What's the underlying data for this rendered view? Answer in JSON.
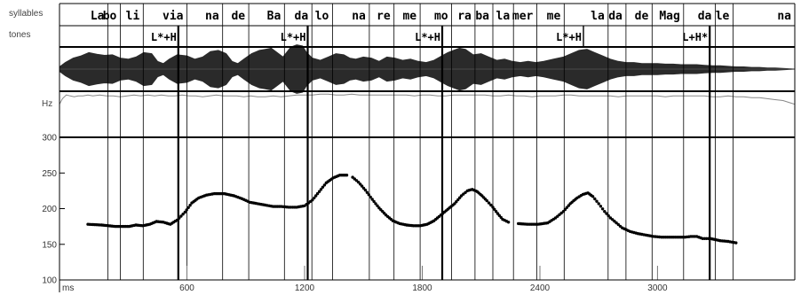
{
  "tiers": {
    "syllables_label": "syllables",
    "tones_label": "tones",
    "syllables": [
      {
        "text": "La",
        "start": 95,
        "end": 197
      },
      {
        "text": "bo",
        "start": 197,
        "end": 260
      },
      {
        "text": "li",
        "start": 260,
        "end": 377
      },
      {
        "text": "via",
        "start": 377,
        "end": 600
      },
      {
        "text": "na",
        "start": 600,
        "end": 782
      },
      {
        "text": "de",
        "start": 782,
        "end": 915
      },
      {
        "text": "Ba",
        "start": 915,
        "end": 1097
      },
      {
        "text": "da",
        "start": 1097,
        "end": 1237
      },
      {
        "text": "lo",
        "start": 1237,
        "end": 1342
      },
      {
        "text": "na",
        "start": 1342,
        "end": 1530
      },
      {
        "text": "re",
        "start": 1530,
        "end": 1656
      },
      {
        "text": "me",
        "start": 1656,
        "end": 1789
      },
      {
        "text": "mo",
        "start": 1789,
        "end": 1950
      },
      {
        "text": "ra",
        "start": 1950,
        "end": 2069
      },
      {
        "text": "ba",
        "start": 2069,
        "end": 2160
      },
      {
        "text": "la",
        "start": 2160,
        "end": 2265
      },
      {
        "text": "mer",
        "start": 2265,
        "end": 2384
      },
      {
        "text": "me",
        "start": 2384,
        "end": 2524
      },
      {
        "text": "la",
        "start": 2524,
        "end": 2748
      },
      {
        "text": "da",
        "start": 2748,
        "end": 2839
      },
      {
        "text": "de",
        "start": 2839,
        "end": 2972
      },
      {
        "text": "Mag",
        "start": 2972,
        "end": 3133
      },
      {
        "text": "da",
        "start": 3133,
        "end": 3294
      },
      {
        "text": "le",
        "start": 3294,
        "end": 3385
      },
      {
        "text": "na",
        "start": 3385,
        "end": 3700
      }
    ],
    "tones": [
      {
        "label": "L*+H",
        "time": 556
      },
      {
        "label": "L*+H",
        "time": 1216
      },
      {
        "label": "L*+H",
        "time": 1902
      },
      {
        "label": "L*+H",
        "time": 2622
      },
      {
        "label": "L+H*",
        "time": 3266
      }
    ],
    "boundary_lines": [
      556,
      1216,
      1902,
      3266
    ]
  },
  "chart_data": {
    "type": "line",
    "ylabel": "Hz",
    "xlabel": "ms",
    "xlim": [
      -50,
      3700
    ],
    "ylim": [
      100,
      300
    ],
    "yticks": [
      100,
      150,
      200,
      250,
      300
    ],
    "xticks": [
      600,
      1200,
      1800,
      2400,
      3000
    ],
    "f0_segments": [
      [
        [
          95,
          178
        ],
        [
          165,
          177
        ],
        [
          235,
          175
        ],
        [
          305,
          175
        ],
        [
          340,
          177
        ],
        [
          375,
          176
        ],
        [
          410,
          178
        ],
        [
          445,
          182
        ],
        [
          480,
          181
        ],
        [
          515,
          178
        ],
        [
          550,
          184
        ],
        [
          590,
          195
        ],
        [
          625,
          208
        ],
        [
          660,
          215
        ],
        [
          700,
          219
        ],
        [
          740,
          221
        ],
        [
          790,
          221
        ],
        [
          840,
          218
        ],
        [
          880,
          214
        ],
        [
          920,
          209
        ],
        [
          960,
          207
        ],
        [
          1000,
          205
        ],
        [
          1040,
          203
        ],
        [
          1080,
          203
        ],
        [
          1120,
          202
        ],
        [
          1160,
          202
        ],
        [
          1200,
          204
        ],
        [
          1240,
          212
        ],
        [
          1275,
          224
        ],
        [
          1310,
          236
        ],
        [
          1345,
          243
        ],
        [
          1380,
          247
        ],
        [
          1415,
          247
        ]
      ],
      [
        [
          1445,
          244
        ],
        [
          1475,
          237
        ],
        [
          1510,
          226
        ],
        [
          1545,
          213
        ],
        [
          1580,
          201
        ],
        [
          1615,
          191
        ],
        [
          1650,
          183
        ],
        [
          1685,
          179
        ],
        [
          1720,
          177
        ],
        [
          1755,
          176
        ],
        [
          1790,
          176
        ],
        [
          1825,
          178
        ],
        [
          1860,
          183
        ],
        [
          1895,
          191
        ],
        [
          1930,
          199
        ],
        [
          1965,
          207
        ],
        [
          2000,
          218
        ],
        [
          2030,
          225
        ],
        [
          2055,
          227
        ],
        [
          2080,
          224
        ],
        [
          2105,
          218
        ],
        [
          2130,
          211
        ],
        [
          2160,
          202
        ],
        [
          2185,
          193
        ],
        [
          2210,
          185
        ],
        [
          2240,
          181
        ]
      ],
      [
        [
          2290,
          179
        ],
        [
          2340,
          178
        ],
        [
          2390,
          178
        ],
        [
          2440,
          180
        ],
        [
          2480,
          187
        ],
        [
          2520,
          196
        ],
        [
          2555,
          207
        ],
        [
          2590,
          215
        ],
        [
          2620,
          220
        ],
        [
          2645,
          222
        ],
        [
          2670,
          217
        ],
        [
          2700,
          207
        ],
        [
          2730,
          196
        ],
        [
          2760,
          187
        ],
        [
          2790,
          180
        ],
        [
          2820,
          173
        ],
        [
          2860,
          168
        ],
        [
          2900,
          165
        ],
        [
          2940,
          163
        ],
        [
          2980,
          161
        ],
        [
          3020,
          160
        ],
        [
          3060,
          160
        ],
        [
          3100,
          160
        ],
        [
          3140,
          160
        ],
        [
          3170,
          161
        ],
        [
          3200,
          161
        ],
        [
          3230,
          158
        ],
        [
          3270,
          158
        ],
        [
          3320,
          155
        ],
        [
          3360,
          154
        ],
        [
          3400,
          152
        ]
      ]
    ],
    "intensity": [
      [
        -50,
        86
      ],
      [
        -35,
        92
      ],
      [
        -15,
        96
      ],
      [
        5,
        95
      ],
      [
        25,
        94
      ],
      [
        45,
        95
      ],
      [
        70,
        95
      ],
      [
        95,
        96
      ],
      [
        120,
        95
      ],
      [
        155,
        96
      ],
      [
        190,
        95
      ],
      [
        225,
        95
      ],
      [
        260,
        94
      ],
      [
        295,
        95
      ],
      [
        330,
        96
      ],
      [
        365,
        95
      ],
      [
        400,
        96
      ],
      [
        435,
        95
      ],
      [
        470,
        96
      ],
      [
        505,
        95
      ],
      [
        540,
        95
      ],
      [
        575,
        96
      ],
      [
        610,
        95
      ],
      [
        645,
        95
      ],
      [
        680,
        94
      ],
      [
        715,
        95
      ],
      [
        750,
        96
      ],
      [
        785,
        95
      ],
      [
        820,
        95
      ],
      [
        855,
        95
      ],
      [
        890,
        94
      ],
      [
        925,
        95
      ],
      [
        960,
        94
      ],
      [
        1000,
        94
      ],
      [
        1040,
        95
      ],
      [
        1080,
        94
      ],
      [
        1120,
        95
      ],
      [
        1160,
        96
      ],
      [
        1200,
        96
      ],
      [
        1240,
        96
      ],
      [
        1280,
        97
      ],
      [
        1320,
        97
      ],
      [
        1360,
        96
      ],
      [
        1400,
        96
      ],
      [
        1440,
        97
      ],
      [
        1480,
        96
      ],
      [
        1520,
        96
      ],
      [
        1560,
        96
      ],
      [
        1600,
        96
      ],
      [
        1640,
        96
      ],
      [
        1680,
        96
      ],
      [
        1720,
        96
      ],
      [
        1760,
        95
      ],
      [
        1800,
        96
      ],
      [
        1840,
        96
      ],
      [
        1880,
        95
      ],
      [
        1920,
        95
      ],
      [
        1960,
        96
      ],
      [
        2000,
        96
      ],
      [
        2040,
        96
      ],
      [
        2080,
        96
      ],
      [
        2120,
        96
      ],
      [
        2160,
        95
      ],
      [
        2200,
        95
      ],
      [
        2240,
        96
      ],
      [
        2280,
        95
      ],
      [
        2320,
        95
      ],
      [
        2360,
        94
      ],
      [
        2400,
        95
      ],
      [
        2440,
        95
      ],
      [
        2480,
        95
      ],
      [
        2520,
        96
      ],
      [
        2560,
        96
      ],
      [
        2600,
        95
      ],
      [
        2640,
        95
      ],
      [
        2680,
        95
      ],
      [
        2720,
        95
      ],
      [
        2760,
        95
      ],
      [
        2800,
        94
      ],
      [
        2840,
        95
      ],
      [
        2880,
        95
      ],
      [
        2920,
        95
      ],
      [
        2960,
        95
      ],
      [
        3000,
        95
      ],
      [
        3040,
        94
      ],
      [
        3080,
        95
      ],
      [
        3120,
        95
      ],
      [
        3160,
        95
      ],
      [
        3200,
        95
      ],
      [
        3240,
        95
      ],
      [
        3280,
        94
      ],
      [
        3320,
        94
      ],
      [
        3360,
        95
      ],
      [
        3400,
        94
      ],
      [
        3440,
        94
      ],
      [
        3480,
        93
      ],
      [
        3520,
        93
      ],
      [
        3560,
        92
      ],
      [
        3600,
        91
      ],
      [
        3640,
        90
      ],
      [
        3670,
        88
      ],
      [
        3700,
        86
      ]
    ],
    "waveform_envelope": [
      [
        -50,
        4
      ],
      [
        -20,
        12
      ],
      [
        20,
        20
      ],
      [
        60,
        24
      ],
      [
        100,
        30
      ],
      [
        140,
        27
      ],
      [
        180,
        25
      ],
      [
        220,
        26
      ],
      [
        260,
        20
      ],
      [
        300,
        18
      ],
      [
        340,
        22
      ],
      [
        380,
        30
      ],
      [
        420,
        28
      ],
      [
        450,
        14
      ],
      [
        480,
        10
      ],
      [
        510,
        18
      ],
      [
        550,
        26
      ],
      [
        600,
        24
      ],
      [
        640,
        18
      ],
      [
        680,
        22
      ],
      [
        720,
        32
      ],
      [
        760,
        34
      ],
      [
        800,
        28
      ],
      [
        830,
        14
      ],
      [
        860,
        10
      ],
      [
        890,
        18
      ],
      [
        930,
        28
      ],
      [
        970,
        34
      ],
      [
        1000,
        36
      ],
      [
        1030,
        38
      ],
      [
        1060,
        30
      ],
      [
        1090,
        22
      ],
      [
        1130,
        40
      ],
      [
        1160,
        44
      ],
      [
        1190,
        42
      ],
      [
        1210,
        30
      ],
      [
        1240,
        20
      ],
      [
        1280,
        16
      ],
      [
        1320,
        22
      ],
      [
        1360,
        28
      ],
      [
        1400,
        26
      ],
      [
        1430,
        20
      ],
      [
        1460,
        18
      ],
      [
        1500,
        22
      ],
      [
        1540,
        20
      ],
      [
        1580,
        14
      ],
      [
        1620,
        22
      ],
      [
        1660,
        20
      ],
      [
        1700,
        16
      ],
      [
        1740,
        18
      ],
      [
        1780,
        14
      ],
      [
        1820,
        12
      ],
      [
        1860,
        16
      ],
      [
        1900,
        24
      ],
      [
        1930,
        30
      ],
      [
        1960,
        34
      ],
      [
        1990,
        38
      ],
      [
        2020,
        36
      ],
      [
        2060,
        26
      ],
      [
        2100,
        28
      ],
      [
        2140,
        22
      ],
      [
        2180,
        16
      ],
      [
        2220,
        18
      ],
      [
        2260,
        14
      ],
      [
        2300,
        12
      ],
      [
        2340,
        14
      ],
      [
        2380,
        12
      ],
      [
        2420,
        14
      ],
      [
        2470,
        18
      ],
      [
        2520,
        22
      ],
      [
        2560,
        28
      ],
      [
        2600,
        34
      ],
      [
        2640,
        36
      ],
      [
        2680,
        30
      ],
      [
        2720,
        24
      ],
      [
        2760,
        18
      ],
      [
        2800,
        14
      ],
      [
        2840,
        12
      ],
      [
        2880,
        12
      ],
      [
        2920,
        10
      ],
      [
        2960,
        10
      ],
      [
        3000,
        10
      ],
      [
        3040,
        9
      ],
      [
        3080,
        9
      ],
      [
        3120,
        8
      ],
      [
        3160,
        8
      ],
      [
        3200,
        8
      ],
      [
        3240,
        7
      ],
      [
        3280,
        6
      ],
      [
        3320,
        6
      ],
      [
        3360,
        5
      ],
      [
        3400,
        4
      ],
      [
        3440,
        4
      ],
      [
        3480,
        3
      ],
      [
        3520,
        3
      ],
      [
        3560,
        2
      ],
      [
        3600,
        2
      ],
      [
        3650,
        1
      ],
      [
        3700,
        0
      ]
    ]
  }
}
